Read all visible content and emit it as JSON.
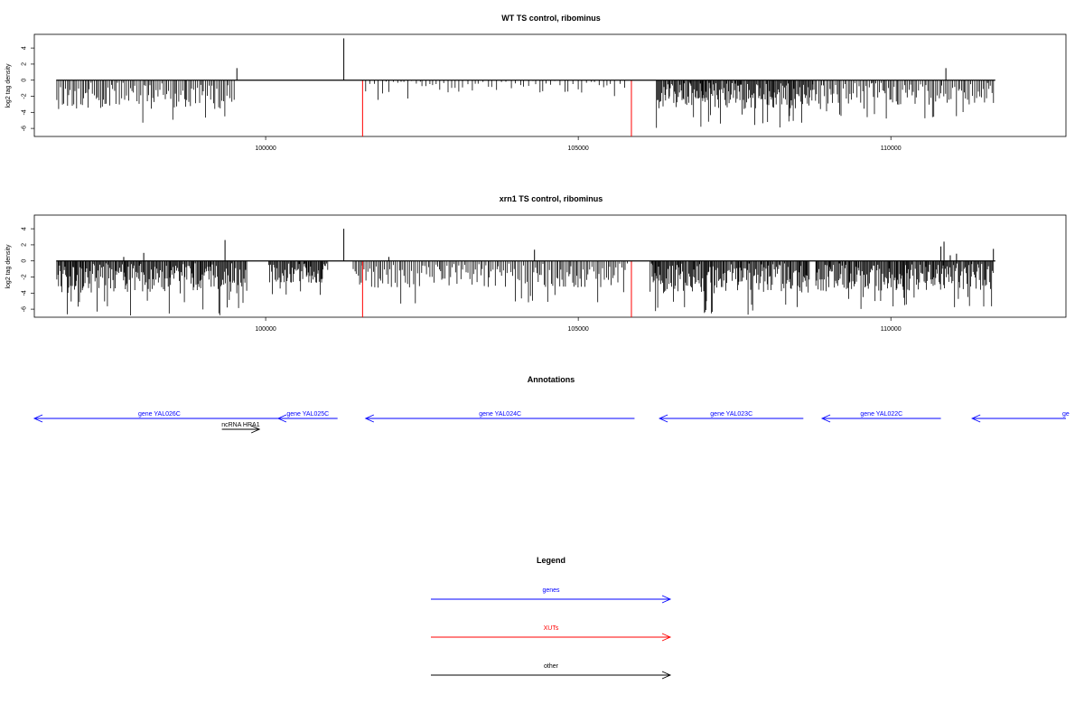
{
  "chart_data": [
    {
      "type": "bar",
      "title": "WT TS control, ribominus",
      "ylabel": "log2 tag density",
      "xlim": [
        96300,
        112800
      ],
      "ylim": [
        -7.0,
        5.7
      ],
      "x_ticks": [
        100000,
        105000,
        110000
      ],
      "x_tick_labels": [
        "100000",
        "105000",
        "110000"
      ],
      "y_ticks": [
        -6,
        -4,
        -2,
        0,
        2,
        4
      ],
      "y_tick_labels": [
        "-6",
        "-4",
        "-2",
        "0",
        "2",
        "4"
      ],
      "baseline_x_range": [
        96650,
        111670
      ],
      "positive_spikes": [
        {
          "x": 99540,
          "y": 1.5
        },
        {
          "x": 101250,
          "y": 5.2
        },
        {
          "x": 110880,
          "y": 1.5
        }
      ],
      "negative_regions": [
        {
          "x_start": 96660,
          "x_end": 99500,
          "max_depth": -6.0,
          "density": "medium"
        },
        {
          "x_start": 101600,
          "x_end": 102500,
          "max_depth": -2.5,
          "density": "sparse"
        },
        {
          "x_start": 102500,
          "x_end": 105800,
          "max_depth": -2.5,
          "density": "sparse"
        },
        {
          "x_start": 106250,
          "x_end": 108750,
          "max_depth": -6.0,
          "density": "dense"
        },
        {
          "x_start": 108750,
          "x_end": 111660,
          "max_depth": -5.0,
          "density": "medium"
        }
      ],
      "highlight_lines": [
        {
          "x": 101550,
          "y": -7.0
        },
        {
          "x": 105850,
          "y": -7.0
        }
      ]
    },
    {
      "type": "bar",
      "title": "xrn1 TS control, ribominus",
      "ylabel": "log2 tag density",
      "xlim": [
        96300,
        112800
      ],
      "ylim": [
        -7.0,
        5.7
      ],
      "x_ticks": [
        100000,
        105000,
        110000
      ],
      "x_tick_labels": [
        "100000",
        "105000",
        "110000"
      ],
      "y_ticks": [
        -6,
        -4,
        -2,
        0,
        2,
        4
      ],
      "y_tick_labels": [
        "-6",
        "-4",
        "-2",
        "0",
        "2",
        "4"
      ],
      "baseline_x_range": [
        96650,
        111670
      ],
      "positive_spikes": [
        {
          "x": 97730,
          "y": 0.5
        },
        {
          "x": 98050,
          "y": 1.0
        },
        {
          "x": 99350,
          "y": 2.6
        },
        {
          "x": 101250,
          "y": 4.0
        },
        {
          "x": 101970,
          "y": 0.5
        },
        {
          "x": 104300,
          "y": 1.4
        },
        {
          "x": 110800,
          "y": 1.8
        },
        {
          "x": 110850,
          "y": 2.4
        },
        {
          "x": 110950,
          "y": 0.7
        },
        {
          "x": 111050,
          "y": 0.9
        },
        {
          "x": 111640,
          "y": 1.5
        }
      ],
      "negative_regions": [
        {
          "x_start": 96660,
          "x_end": 99700,
          "max_depth": -6.8,
          "density": "dense"
        },
        {
          "x_start": 100050,
          "x_end": 101000,
          "max_depth": -4.5,
          "density": "dense"
        },
        {
          "x_start": 101400,
          "x_end": 105800,
          "max_depth": -5.5,
          "density": "medium"
        },
        {
          "x_start": 106150,
          "x_end": 108700,
          "max_depth": -6.8,
          "density": "dense"
        },
        {
          "x_start": 108800,
          "x_end": 111650,
          "max_depth": -6.3,
          "density": "dense"
        }
      ],
      "highlight_lines": [
        {
          "x": 101550,
          "y": -7.0
        },
        {
          "x": 105850,
          "y": -7.0
        }
      ]
    }
  ],
  "annotations": {
    "title": "Annotations",
    "items": [
      {
        "label": "gene YAL026C",
        "x_start": 96300,
        "x_end": 100300,
        "direction": "left",
        "color": "#0000ff",
        "row": 0
      },
      {
        "label": "ncRNA HRA1",
        "x_start": 99300,
        "x_end": 99900,
        "direction": "right",
        "color": "#000000",
        "row": 1
      },
      {
        "label": "gene YAL025C",
        "x_start": 100200,
        "x_end": 101150,
        "direction": "left",
        "color": "#0000ff",
        "row": 0
      },
      {
        "label": "gene YAL024C",
        "x_start": 101600,
        "x_end": 105900,
        "direction": "left",
        "color": "#0000ff",
        "row": 0
      },
      {
        "label": "gene YAL023C",
        "x_start": 106300,
        "x_end": 108600,
        "direction": "left",
        "color": "#0000ff",
        "row": 0
      },
      {
        "label": "gene YAL022C",
        "x_start": 108900,
        "x_end": 110800,
        "direction": "left",
        "color": "#0000ff",
        "row": 0
      },
      {
        "label": "ge",
        "x_start": 111300,
        "x_end": 112800,
        "direction": "left",
        "color": "#0000ff",
        "row": 0
      }
    ]
  },
  "legend": {
    "title": "Legend",
    "items": [
      {
        "label": "genes",
        "color": "#0000ff"
      },
      {
        "label": "XUTs",
        "color": "#ff0000"
      },
      {
        "label": "other",
        "color": "#000000"
      }
    ]
  }
}
